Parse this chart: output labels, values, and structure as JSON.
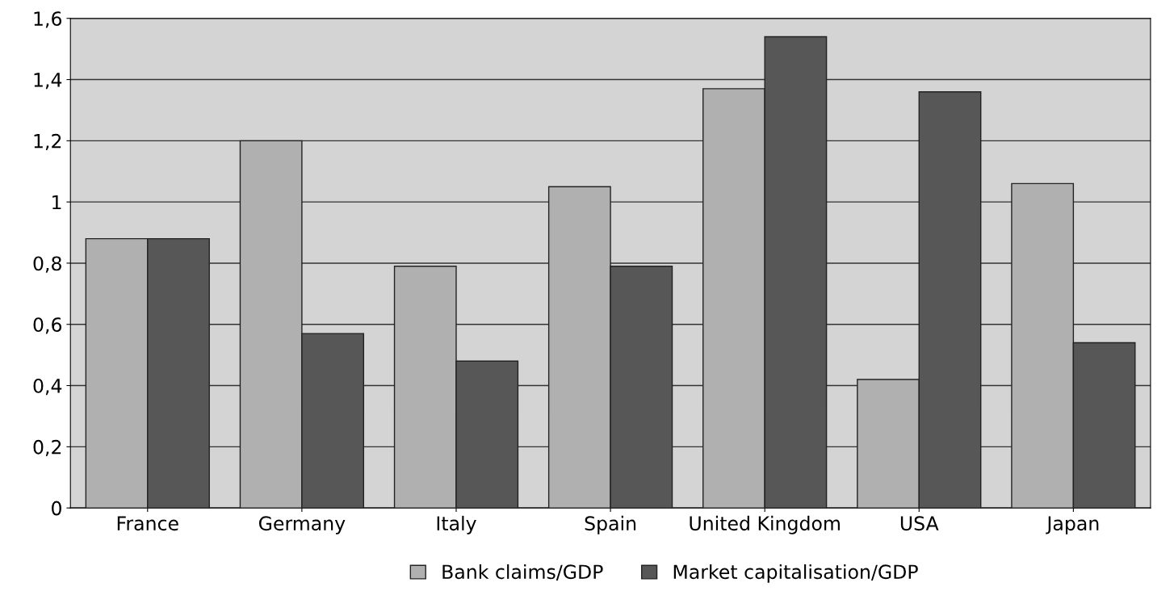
{
  "chart_data": {
    "type": "bar",
    "categories": [
      "France",
      "Germany",
      "Italy",
      "Spain",
      "United Kingdom",
      "USA",
      "Japan"
    ],
    "series": [
      {
        "name": "Bank claims/GDP",
        "color": "#b0b0b0",
        "values": [
          0.88,
          1.2,
          0.79,
          1.05,
          1.37,
          0.42,
          1.06
        ]
      },
      {
        "name": "Market capitalisation/GDP",
        "color": "#575757",
        "values": [
          0.88,
          0.57,
          0.48,
          0.79,
          1.54,
          1.36,
          0.54
        ]
      }
    ],
    "ylim": [
      0,
      1.6
    ],
    "yticks": [
      0,
      {
        "value": 0.2,
        "label": "0,2"
      },
      {
        "value": 0.4,
        "label": "0,4"
      },
      {
        "value": 0.6,
        "label": "0,6"
      },
      {
        "value": 0.8,
        "label": "0,8"
      },
      1,
      {
        "value": 1.2,
        "label": "1,2"
      },
      {
        "value": 1.4,
        "label": "1,4"
      },
      {
        "value": 1.6,
        "label": "1,6"
      }
    ],
    "grid": "y",
    "legend": "bottom"
  }
}
